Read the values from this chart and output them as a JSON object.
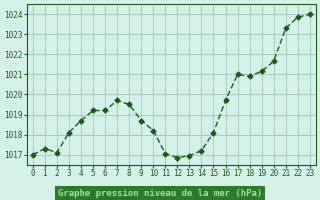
{
  "x": [
    0,
    1,
    2,
    3,
    4,
    5,
    6,
    7,
    8,
    9,
    10,
    11,
    12,
    13,
    14,
    15,
    16,
    17,
    18,
    19,
    20,
    21,
    22,
    23
  ],
  "y": [
    1017.0,
    1017.3,
    1017.1,
    1018.1,
    1018.7,
    1019.2,
    1019.2,
    1019.7,
    1019.5,
    1018.7,
    1018.2,
    1017.05,
    1016.85,
    1016.95,
    1017.2,
    1018.1,
    1019.7,
    1021.0,
    1020.9,
    1021.15,
    1021.65,
    1023.3,
    1023.85,
    1024.0
  ],
  "ylim": [
    1016.5,
    1024.5
  ],
  "yticks": [
    1017,
    1018,
    1019,
    1020,
    1021,
    1022,
    1023,
    1024
  ],
  "xticks": [
    0,
    1,
    2,
    3,
    4,
    5,
    6,
    7,
    8,
    9,
    10,
    11,
    12,
    13,
    14,
    15,
    16,
    17,
    18,
    19,
    20,
    21,
    22,
    23
  ],
  "line_color": "#1a5c1a",
  "marker_color": "#1a5c1a",
  "bg_color": "#d4f0e8",
  "grid_color": "#a0c8b8",
  "xlabel": "Graphe pression niveau de la mer (hPa)",
  "xlabel_color": "#1a5c1a",
  "tick_color": "#1a5c1a",
  "spine_color": "#1a5c1a",
  "bottom_bg": "#2d7a2d",
  "bottom_label_color": "#a0e0a0"
}
